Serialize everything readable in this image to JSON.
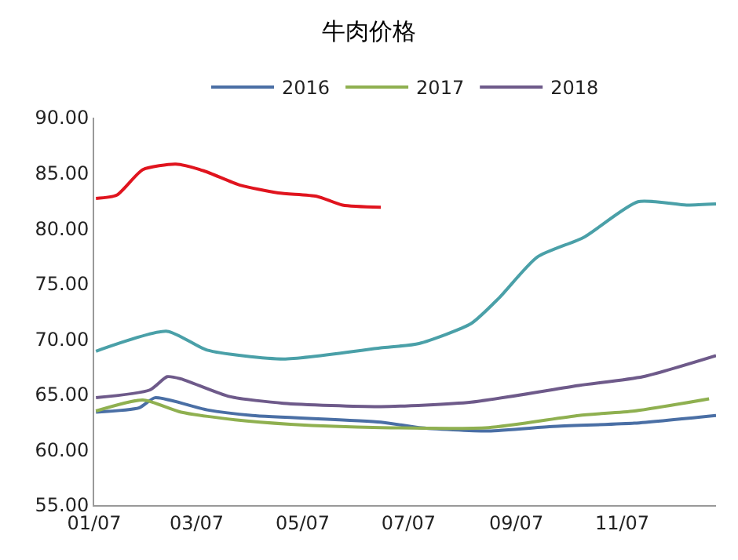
{
  "chart_data": {
    "type": "line",
    "title": "牛肉价格",
    "xlim": [
      "--01-07",
      "--12-31"
    ],
    "ylim": [
      55,
      90
    ],
    "xticks": [
      {
        "value": "--01-07",
        "label": "01/07"
      },
      {
        "value": "--03-07",
        "label": "03/07"
      },
      {
        "value": "--05-07",
        "label": "05/07"
      },
      {
        "value": "--07-07",
        "label": "07/07"
      },
      {
        "value": "--09-07",
        "label": "09/07"
      },
      {
        "value": "--11-07",
        "label": "11/07"
      }
    ],
    "yticks": [
      {
        "value": 55,
        "label": "55.00"
      },
      {
        "value": 60,
        "label": "60.00"
      },
      {
        "value": 65,
        "label": "65.00"
      },
      {
        "value": 70,
        "label": "70.00"
      },
      {
        "value": 75,
        "label": "75.00"
      },
      {
        "value": 80,
        "label": "80.00"
      },
      {
        "value": 85,
        "label": "85.00"
      },
      {
        "value": 90,
        "label": "90.00"
      }
    ],
    "grid": false,
    "legend": "top",
    "marker": "none",
    "line_style": "solid",
    "series": [
      {
        "color": "#4aa0a8",
        "x": [
          "--01-08",
          "--02-18",
          "--03-13",
          "--04-26",
          "--06-21",
          "--07-13",
          "--08-12",
          "--08-28",
          "--09-19",
          "--10-16",
          "--11-16",
          "--12-14",
          "--12-31"
        ],
        "values": [
          68.9,
          70.7,
          69.0,
          68.2,
          69.2,
          69.6,
          71.4,
          73.7,
          77.4,
          79.2,
          82.4,
          82.1,
          82.2
        ]
      },
      {
        "name": "2016",
        "color": "#4a6fa5",
        "x": [
          "--01-08",
          "--02-02",
          "--02-11",
          "--03-13",
          "--04-08",
          "--06-21",
          "--07-13",
          "--08-22",
          "--09-28",
          "--11-14",
          "--12-31"
        ],
        "values": [
          63.4,
          63.8,
          64.7,
          63.6,
          63.1,
          62.5,
          62.0,
          61.7,
          62.1,
          62.4,
          63.1
        ]
      },
      {
        "name": "2017",
        "color": "#8fb050",
        "x": [
          "--01-08",
          "--02-04",
          "--02-26",
          "--03-29",
          "--04-30",
          "--06-21",
          "--08-22",
          "--10-13",
          "--11-14",
          "--12-27"
        ],
        "values": [
          63.5,
          64.5,
          63.4,
          62.7,
          62.3,
          62.0,
          62.0,
          63.1,
          63.5,
          64.6
        ]
      },
      {
        "name": "2018",
        "color": "#6e5a8a",
        "x": [
          "--01-08",
          "--02-08",
          "--02-18",
          "--02-26",
          "--03-26",
          "--04-26",
          "--06-21",
          "--08-12",
          "--10-13",
          "--11-19",
          "--12-31"
        ],
        "values": [
          64.7,
          65.4,
          66.6,
          66.4,
          64.8,
          64.2,
          63.9,
          64.3,
          65.8,
          66.6,
          68.5
        ]
      },
      {
        "color": "#e0141e",
        "x": [
          "--01-08",
          "--01-20",
          "--02-04",
          "--02-23",
          "--03-11",
          "--04-01",
          "--04-23",
          "--05-15",
          "--05-30",
          "--06-21"
        ],
        "values": [
          82.7,
          83.0,
          85.3,
          85.8,
          85.2,
          83.9,
          83.2,
          82.9,
          82.1,
          81.9
        ]
      }
    ]
  }
}
